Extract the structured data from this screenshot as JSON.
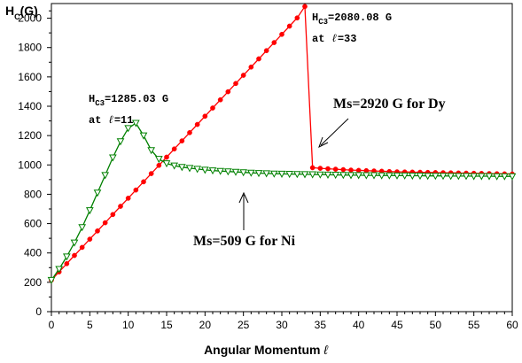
{
  "chart_data": {
    "type": "line",
    "ylabel": {
      "main": "H",
      "sub": "C",
      "rest": "(G)"
    },
    "xlabel": {
      "text": "Angular Momentum ",
      "symbol": "ℓ"
    },
    "xlim": [
      0,
      60
    ],
    "ylim": [
      0,
      2100
    ],
    "xticks": [
      0,
      5,
      10,
      15,
      20,
      25,
      30,
      35,
      40,
      45,
      50,
      55,
      60
    ],
    "yticks": [
      0,
      200,
      400,
      600,
      800,
      1000,
      1200,
      1400,
      1600,
      1800,
      2000
    ],
    "grid": false,
    "series": [
      {
        "name": "Dy",
        "color": "#ff0000",
        "marker": "circle",
        "x": [
          0,
          1,
          2,
          3,
          4,
          5,
          6,
          7,
          8,
          9,
          10,
          11,
          12,
          13,
          14,
          15,
          16,
          17,
          18,
          19,
          20,
          21,
          22,
          23,
          24,
          25,
          26,
          27,
          28,
          29,
          30,
          31,
          32,
          33,
          34,
          35,
          36,
          37,
          38,
          39,
          40,
          41,
          42,
          43,
          44,
          45,
          46,
          47,
          48,
          49,
          50,
          51,
          52,
          53,
          54,
          55,
          56,
          57,
          58,
          59,
          60
        ],
        "y": [
          215,
          271,
          327,
          383,
          438,
          494,
          550,
          606,
          662,
          718,
          773,
          829,
          885,
          941,
          997,
          1053,
          1109,
          1164,
          1220,
          1276,
          1332,
          1388,
          1444,
          1499,
          1555,
          1611,
          1667,
          1723,
          1779,
          1834,
          1890,
          1946,
          2002,
          2080.08,
          981,
          977,
          974,
          971,
          968,
          965,
          963,
          961,
          959,
          957,
          955,
          953,
          952,
          951,
          950,
          949,
          948,
          947,
          946,
          945,
          944,
          943,
          942,
          941,
          940,
          939,
          938
        ]
      },
      {
        "name": "Ni",
        "color": "#008000",
        "marker": "triangle-down",
        "x": [
          0,
          1,
          2,
          3,
          4,
          5,
          6,
          7,
          8,
          9,
          10,
          11,
          12,
          13,
          14,
          15,
          16,
          17,
          18,
          19,
          20,
          21,
          22,
          23,
          24,
          25,
          26,
          27,
          28,
          29,
          30,
          31,
          32,
          33,
          34,
          35,
          36,
          37,
          38,
          39,
          40,
          41,
          42,
          43,
          44,
          45,
          46,
          47,
          48,
          49,
          50,
          51,
          52,
          53,
          54,
          55,
          56,
          57,
          58,
          59,
          60
        ],
        "y": [
          215,
          290,
          375,
          470,
          575,
          690,
          810,
          930,
          1050,
          1160,
          1250,
          1285.03,
          1200,
          1100,
          1040,
          1010,
          995,
          985,
          978,
          972,
          966,
          962,
          958,
          955,
          952,
          949,
          946,
          944,
          942,
          940,
          939,
          938,
          937,
          936,
          935,
          934,
          933,
          932,
          931,
          930,
          930,
          929,
          929,
          928,
          928,
          927,
          927,
          926,
          926,
          925,
          925,
          925,
          924,
          924,
          924,
          923,
          923,
          923,
          922,
          922,
          922
        ]
      }
    ],
    "annotations": {
      "ni_peak": {
        "h": "H",
        "sub": "C3",
        "value": "=1285.03 G",
        "line2_prefix": "at ",
        "symbol": "ℓ",
        "line2_suffix": "=11"
      },
      "dy_peak": {
        "h": "H",
        "sub": "C3",
        "value": "=2080.08 G",
        "line2_prefix": "at ",
        "symbol": "ℓ",
        "line2_suffix": "=33"
      },
      "dy_label": "Ms=2920 G for Dy",
      "ni_label": "Ms=509 G for Ni"
    }
  }
}
